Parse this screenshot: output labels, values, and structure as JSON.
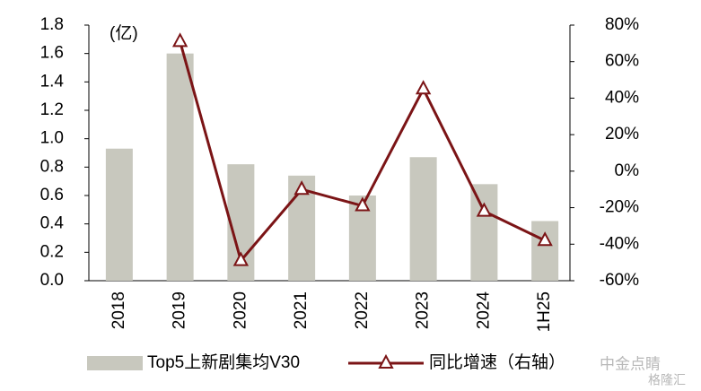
{
  "chart_data": {
    "type": "bar",
    "annotation": "(亿)",
    "categories": [
      "2018",
      "2019",
      "2020",
      "2021",
      "2022",
      "2023",
      "2024",
      "1H25"
    ],
    "series": [
      {
        "name": "Top5上新剧集均V30",
        "type": "bar",
        "color": "#c8c8be",
        "values": [
          0.93,
          1.6,
          0.82,
          0.74,
          0.6,
          0.87,
          0.68,
          0.42
        ]
      },
      {
        "name": "同比增速（右轴）",
        "type": "line",
        "axis": "y2",
        "color": "#7b1416",
        "values": [
          null,
          71,
          -49,
          -10,
          -19,
          45,
          -22,
          -38
        ]
      }
    ],
    "ylim": [
      0,
      1.8
    ],
    "yticks": [
      {
        "value": 0,
        "label": "0.0"
      },
      {
        "value": 0.2,
        "label": "0.2"
      },
      {
        "value": 0.4,
        "label": "0.4"
      },
      {
        "value": 0.6,
        "label": "0.6"
      },
      {
        "value": 0.8,
        "label": "0.8"
      },
      {
        "value": 1.0,
        "label": "1.0"
      },
      {
        "value": 1.2,
        "label": "1.2"
      },
      {
        "value": 1.4,
        "label": "1.4"
      },
      {
        "value": 1.6,
        "label": "1.6"
      },
      {
        "value": 1.8,
        "label": "1.8"
      }
    ],
    "y2lim": [
      -60,
      80
    ],
    "y2ticks": [
      {
        "value": -60,
        "label": "-60%"
      },
      {
        "value": -40,
        "label": "-40%"
      },
      {
        "value": -20,
        "label": "-20%"
      },
      {
        "value": 0,
        "label": "0%"
      },
      {
        "value": 20,
        "label": "20%"
      },
      {
        "value": 40,
        "label": "40%"
      },
      {
        "value": 60,
        "label": "60%"
      },
      {
        "value": 80,
        "label": "80%"
      }
    ],
    "watermark": "中金点睛",
    "source_logo": "格隆汇"
  }
}
